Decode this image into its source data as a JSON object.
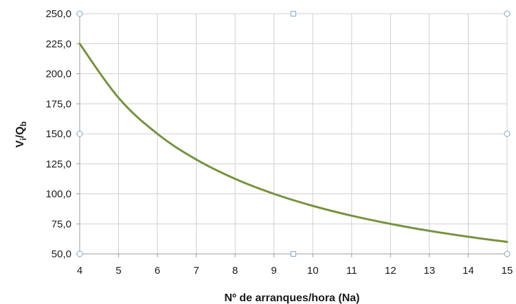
{
  "chart_data": {
    "type": "line",
    "xlabel": "Nº de arranques/hora (Na)",
    "ylabel": {
      "main": "V",
      "sub1": "i",
      "slash": "/Q",
      "sub2": "b"
    },
    "x": [
      4,
      5,
      6,
      7,
      8,
      9,
      10,
      11,
      12,
      13,
      14,
      15
    ],
    "xlim": [
      4,
      15
    ],
    "ylim": [
      50,
      250
    ],
    "x_ticks": [
      "4",
      "5",
      "6",
      "7",
      "8",
      "9",
      "10",
      "11",
      "12",
      "13",
      "14",
      "15"
    ],
    "y_ticks": [
      "50,0",
      "75,0",
      "100,0",
      "125,0",
      "150,0",
      "175,0",
      "200,0",
      "225,0",
      "250,0"
    ],
    "grid": true,
    "series": [
      {
        "values": [
          225,
          180,
          150,
          128.6,
          112.5,
          100,
          90,
          81.8,
          75,
          69.2,
          64.3,
          60
        ],
        "color": "#76923c"
      }
    ]
  }
}
